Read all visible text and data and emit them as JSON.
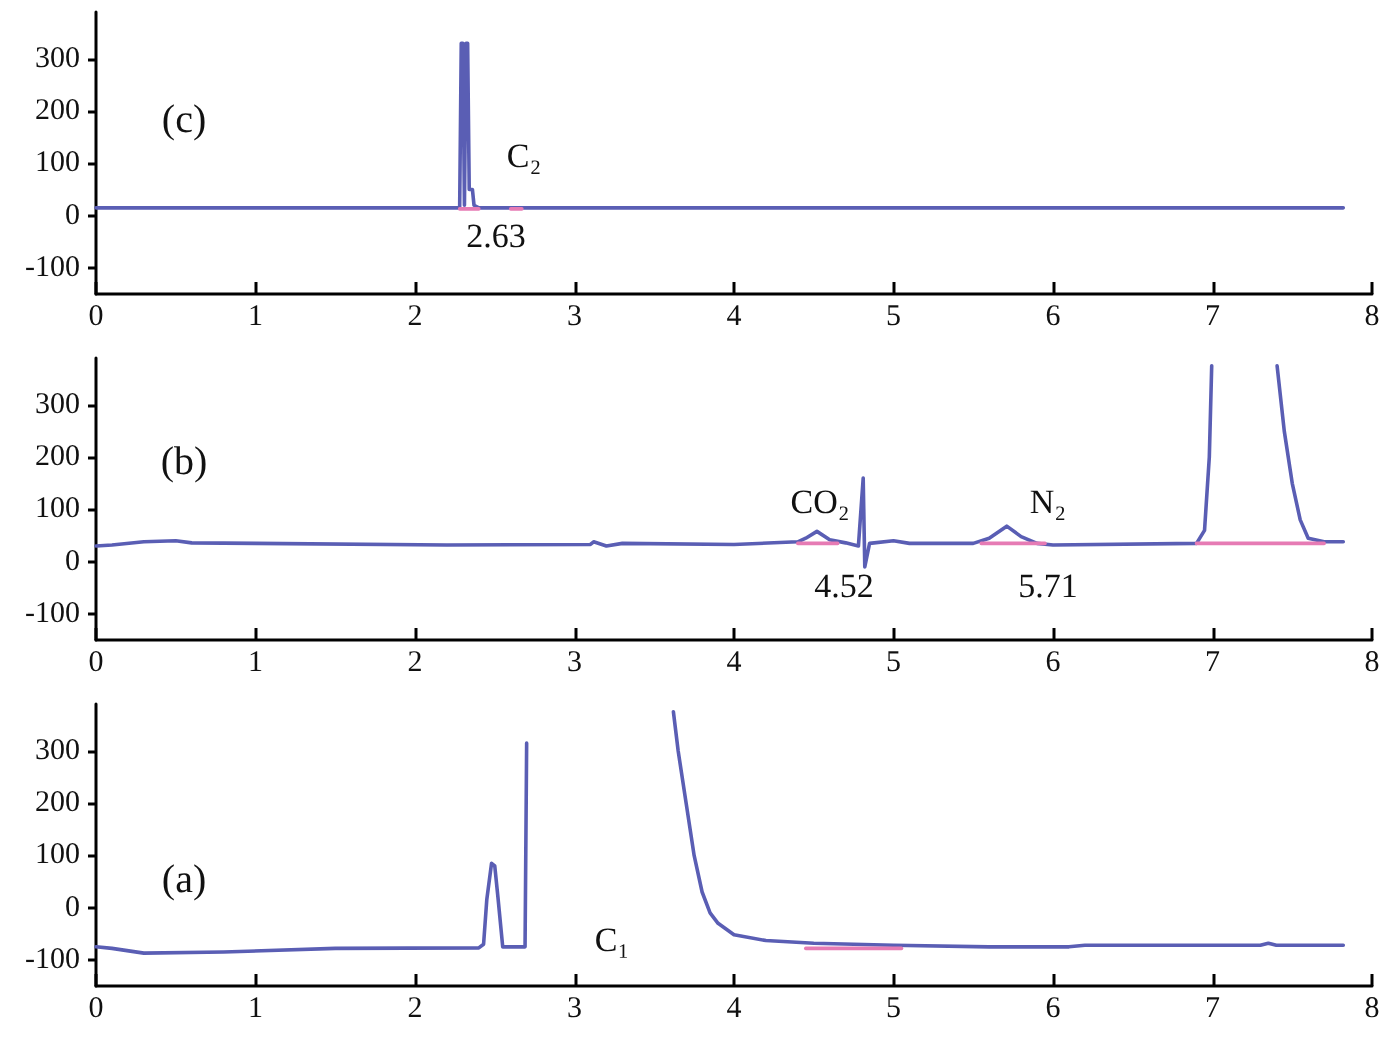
{
  "chart_data": [
    {
      "type": "line",
      "marker": "none",
      "xlim": [
        0,
        8
      ],
      "xticks": [
        0,
        1,
        2,
        3,
        4,
        5,
        6,
        7,
        8
      ],
      "ylim": [
        -150,
        390
      ],
      "yticks": [
        -100,
        0,
        100,
        200,
        300
      ],
      "grid": false,
      "annotations": [
        "(c)",
        "C₂",
        "2.63"
      ],
      "series": [
        {
          "color": "#5a5eb4",
          "x": [
            0,
            2.28,
            2.29,
            2.3,
            2.31,
            2.32,
            2.33,
            2.34,
            2.36,
            2.37,
            2.4,
            7.82
          ],
          "values": [
            15,
            15,
            330,
            330,
            20,
            330,
            330,
            50,
            50,
            20,
            15,
            15
          ]
        },
        {
          "color": "#e67bb4",
          "x": [
            2.28,
            2.4,
            2.41,
            2.6,
            2.67
          ],
          "values": [
            13,
            13,
            null,
            13,
            13
          ]
        }
      ]
    },
    {
      "type": "line",
      "marker": "none",
      "xlim": [
        0,
        8
      ],
      "xticks": [
        0,
        1,
        2,
        3,
        4,
        5,
        6,
        7,
        8
      ],
      "ylim": [
        -150,
        390
      ],
      "yticks": [
        -100,
        0,
        100,
        200,
        300
      ],
      "grid": false,
      "annotations": [
        "(b)",
        "CO₂",
        "4.52",
        "N₂",
        "5.71"
      ],
      "series": [
        {
          "color": "#5a5eb4",
          "x": [
            0,
            0.1,
            0.3,
            0.5,
            0.6,
            1,
            2.2,
            3.1,
            3.12,
            3.2,
            3.3,
            4,
            4.4,
            4.45,
            4.52,
            4.6,
            4.7,
            4.78,
            4.81,
            4.82,
            4.85,
            5,
            5.1,
            5.5,
            5.6,
            5.71,
            5.8,
            5.9,
            6,
            6.9,
            6.95,
            6.98,
            6.995,
            7.2,
            7.405,
            7.45,
            7.5,
            7.55,
            7.6,
            7.7,
            7.82
          ],
          "values": [
            30,
            32,
            38,
            40,
            36,
            35,
            32,
            33,
            38,
            30,
            35,
            33,
            38,
            45,
            58,
            42,
            36,
            30,
            160,
            -10,
            35,
            40,
            35,
            35,
            45,
            68,
            48,
            35,
            32,
            35,
            60,
            200,
            375,
            null,
            375,
            250,
            150,
            80,
            45,
            38,
            38
          ]
        },
        {
          "color": "#e67bb4",
          "x": [
            4.4,
            4.65,
            4.66,
            5.55,
            5.95,
            5.96,
            6.9,
            7.7
          ],
          "values": [
            35,
            35,
            null,
            35,
            35,
            null,
            35,
            35
          ]
        }
      ]
    },
    {
      "type": "line",
      "marker": "none",
      "xlim": [
        0,
        8
      ],
      "xticks": [
        0,
        1,
        2,
        3,
        4,
        5,
        6,
        7,
        8
      ],
      "ylim": [
        -150,
        390
      ],
      "yticks": [
        -100,
        0,
        100,
        200,
        300
      ],
      "grid": false,
      "annotations": [
        "(a)",
        "C₁"
      ],
      "series": [
        {
          "color": "#5a5eb4",
          "x": [
            0,
            0.1,
            0.3,
            0.8,
            1.5,
            2.4,
            2.43,
            2.45,
            2.48,
            2.5,
            2.52,
            2.55,
            2.69,
            2.7,
            2.71,
            3.6,
            3.62,
            3.65,
            3.7,
            3.75,
            3.8,
            3.85,
            3.9,
            4,
            4.2,
            4.5,
            5,
            5.6,
            6.1,
            6.2,
            7.3,
            7.35,
            7.4,
            7.82
          ],
          "values": [
            -75,
            -78,
            -87,
            -85,
            -78,
            -77,
            -70,
            15,
            85,
            80,
            20,
            -75,
            -75,
            315,
            null,
            null,
            375,
            300,
            200,
            100,
            30,
            -10,
            -30,
            -52,
            -63,
            -68,
            -72,
            -75,
            -75,
            -72,
            -72,
            -68,
            -72,
            -72
          ]
        },
        {
          "color": "#e67bb4",
          "x": [
            4.45,
            5.05
          ],
          "values": [
            -78,
            -78
          ]
        }
      ]
    }
  ]
}
